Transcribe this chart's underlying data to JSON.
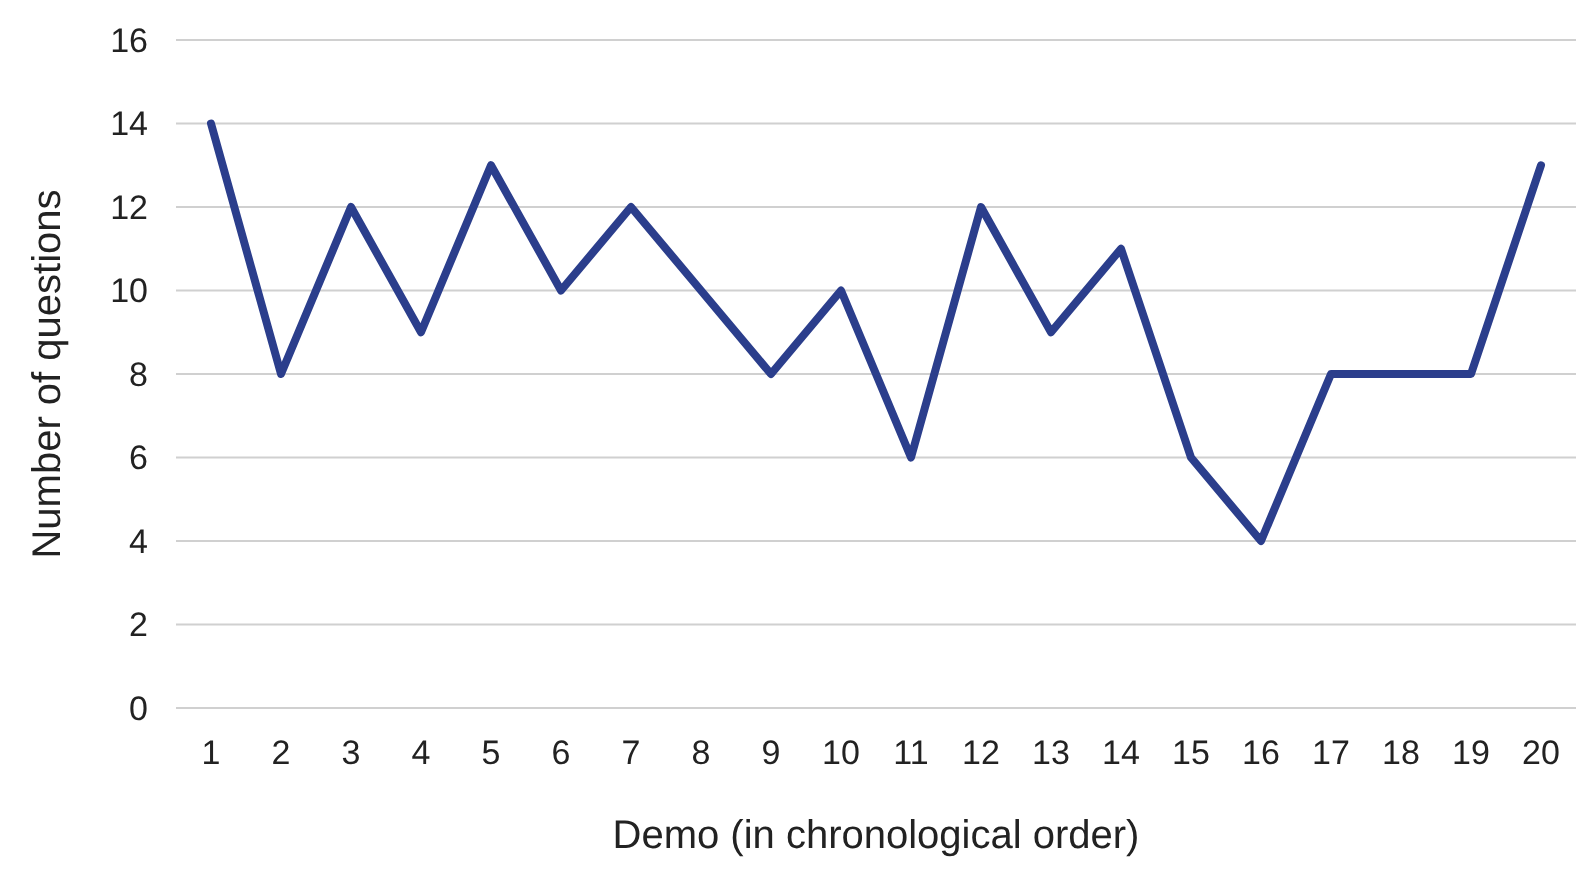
{
  "chart_data": {
    "type": "line",
    "xlabel": "Demo (in chronological order)",
    "ylabel": "Number of questions",
    "categories": [
      "1",
      "2",
      "3",
      "4",
      "5",
      "6",
      "7",
      "8",
      "9",
      "10",
      "11",
      "12",
      "13",
      "14",
      "15",
      "16",
      "17",
      "18",
      "19",
      "20"
    ],
    "series": [
      {
        "color": "#2b3e8c",
        "values": [
          14,
          8,
          12,
          9,
          13,
          10,
          12,
          10,
          8,
          10,
          6,
          12,
          9,
          11,
          6,
          4,
          8,
          8,
          8,
          13
        ]
      }
    ],
    "ylim": [
      0,
      16
    ],
    "yticks": [
      0,
      2,
      4,
      6,
      8,
      10,
      12,
      14,
      16
    ],
    "grid": "y",
    "marker": "none",
    "line_style": "solid"
  }
}
